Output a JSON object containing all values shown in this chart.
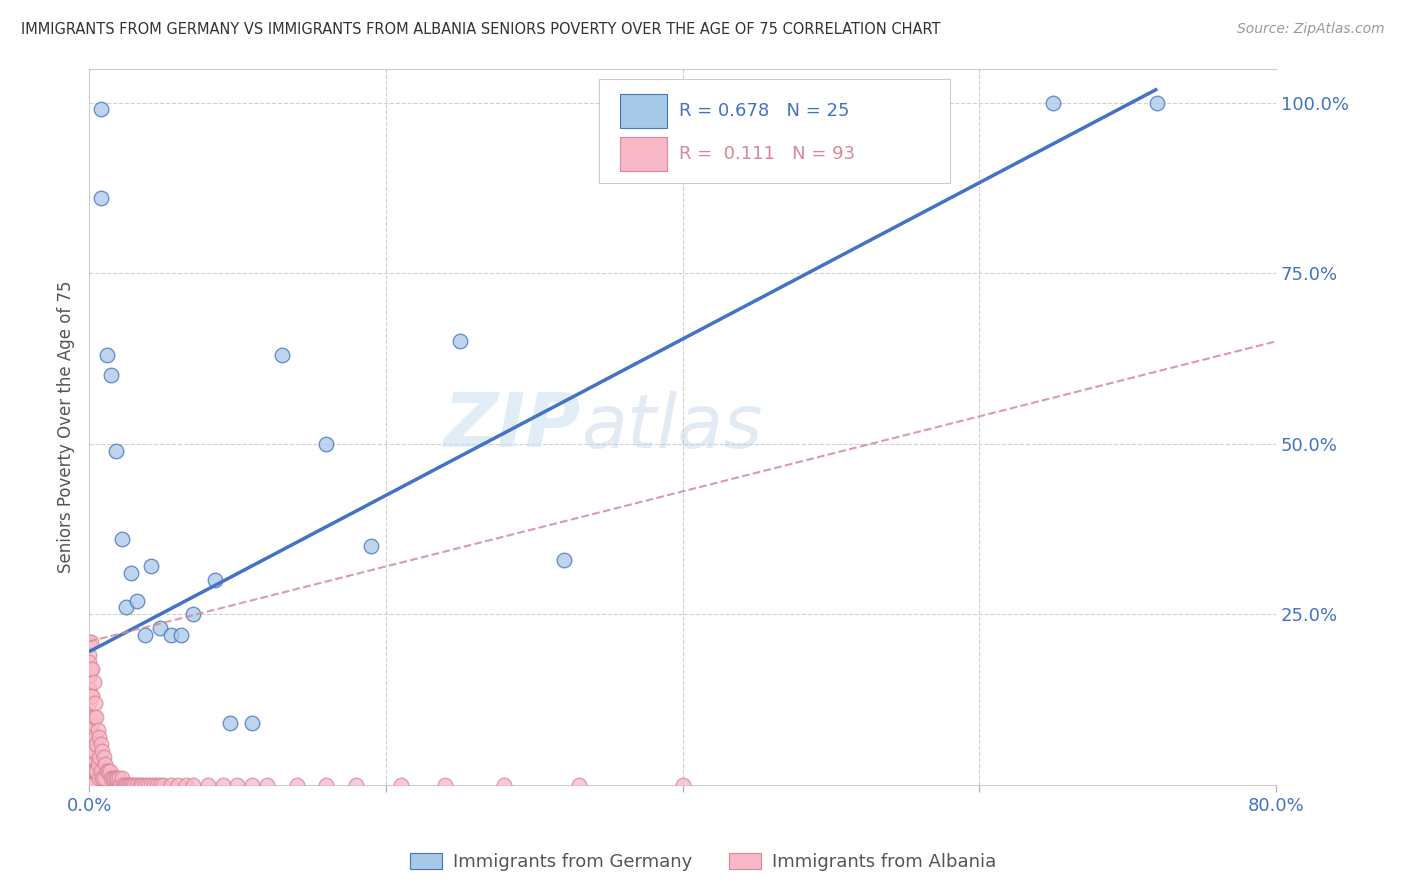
{
  "title": "IMMIGRANTS FROM GERMANY VS IMMIGRANTS FROM ALBANIA SENIORS POVERTY OVER THE AGE OF 75 CORRELATION CHART",
  "source": "Source: ZipAtlas.com",
  "ylabel": "Seniors Poverty Over the Age of 75",
  "xlabel_germany": "Immigrants from Germany",
  "xlabel_albania": "Immigrants from Albania",
  "r_germany": 0.678,
  "n_germany": 25,
  "r_albania": 0.111,
  "n_albania": 93,
  "xlim": [
    0.0,
    0.8
  ],
  "ylim": [
    0.0,
    1.05
  ],
  "ytick_labels": [
    "100.0%",
    "75.0%",
    "50.0%",
    "25.0%"
  ],
  "ytick_values": [
    1.0,
    0.75,
    0.5,
    0.25
  ],
  "color_germany": "#a8c8e8",
  "color_albania": "#f8b8c8",
  "line_germany": "#4472c4",
  "line_albania": "#d88898",
  "watermark_zip": "ZIP",
  "watermark_atlas": "atlas",
  "germany_x": [
    0.008,
    0.008,
    0.012,
    0.015,
    0.018,
    0.022,
    0.025,
    0.028,
    0.032,
    0.038,
    0.042,
    0.048,
    0.055,
    0.062,
    0.07,
    0.085,
    0.095,
    0.11,
    0.13,
    0.16,
    0.19,
    0.25,
    0.32,
    0.65,
    0.72
  ],
  "germany_y": [
    0.99,
    0.86,
    0.63,
    0.6,
    0.49,
    0.36,
    0.26,
    0.31,
    0.27,
    0.22,
    0.32,
    0.23,
    0.22,
    0.22,
    0.25,
    0.3,
    0.09,
    0.09,
    0.63,
    0.5,
    0.35,
    0.65,
    0.33,
    1.0,
    1.0
  ],
  "albania_x": [
    0.0,
    0.0,
    0.0,
    0.0,
    0.0,
    0.0,
    0.0,
    0.0,
    0.0,
    0.0,
    0.0,
    0.0,
    0.0,
    0.0,
    0.001,
    0.001,
    0.001,
    0.001,
    0.001,
    0.002,
    0.002,
    0.002,
    0.002,
    0.002,
    0.002,
    0.003,
    0.003,
    0.003,
    0.003,
    0.004,
    0.004,
    0.004,
    0.005,
    0.005,
    0.005,
    0.006,
    0.006,
    0.007,
    0.007,
    0.007,
    0.008,
    0.008,
    0.009,
    0.009,
    0.01,
    0.01,
    0.011,
    0.012,
    0.013,
    0.014,
    0.015,
    0.016,
    0.017,
    0.018,
    0.019,
    0.02,
    0.021,
    0.022,
    0.023,
    0.024,
    0.025,
    0.026,
    0.027,
    0.028,
    0.029,
    0.03,
    0.032,
    0.034,
    0.036,
    0.038,
    0.04,
    0.042,
    0.044,
    0.046,
    0.048,
    0.05,
    0.055,
    0.06,
    0.065,
    0.07,
    0.08,
    0.09,
    0.1,
    0.11,
    0.12,
    0.14,
    0.16,
    0.18,
    0.21,
    0.24,
    0.28,
    0.33,
    0.4
  ],
  "albania_y": [
    0.21,
    0.19,
    0.18,
    0.16,
    0.14,
    0.12,
    0.1,
    0.08,
    0.06,
    0.04,
    0.02,
    0.01,
    0.0,
    0.0,
    0.21,
    0.17,
    0.13,
    0.08,
    0.04,
    0.17,
    0.13,
    0.09,
    0.05,
    0.02,
    0.0,
    0.15,
    0.1,
    0.05,
    0.02,
    0.12,
    0.07,
    0.02,
    0.1,
    0.06,
    0.02,
    0.08,
    0.03,
    0.07,
    0.04,
    0.01,
    0.06,
    0.02,
    0.05,
    0.01,
    0.04,
    0.01,
    0.03,
    0.02,
    0.02,
    0.02,
    0.01,
    0.01,
    0.01,
    0.01,
    0.01,
    0.01,
    0.0,
    0.01,
    0.0,
    0.0,
    0.0,
    0.0,
    0.0,
    0.0,
    0.0,
    0.0,
    0.0,
    0.0,
    0.0,
    0.0,
    0.0,
    0.0,
    0.0,
    0.0,
    0.0,
    0.0,
    0.0,
    0.0,
    0.0,
    0.0,
    0.0,
    0.0,
    0.0,
    0.0,
    0.0,
    0.0,
    0.0,
    0.0,
    0.0,
    0.0,
    0.0,
    0.0,
    0.0
  ],
  "line_g_x0": 0.0,
  "line_g_y0": 0.195,
  "line_g_x1": 0.72,
  "line_g_y1": 1.02,
  "line_a_x0": 0.0,
  "line_a_y0": 0.21,
  "line_a_x1": 0.8,
  "line_a_y1": 0.65
}
